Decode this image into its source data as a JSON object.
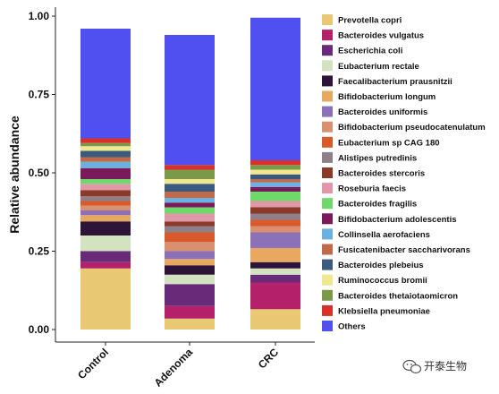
{
  "chart_data": {
    "type": "bar",
    "stacked": true,
    "ylabel": "Relative abundance",
    "ylim": [
      0,
      1
    ],
    "yticks": [
      "0.00",
      "0.25",
      "0.50",
      "0.75",
      "1.00"
    ],
    "categories": [
      "Control",
      "Adenoma",
      "CRC"
    ],
    "grid": false,
    "legend_position": "right",
    "series": [
      {
        "name": "Prevotella copri",
        "color": "#E8C872",
        "values": [
          0.195,
          0.035,
          0.065
        ]
      },
      {
        "name": "Bacteroides vulgatus",
        "color": "#B5206A",
        "values": [
          0.02,
          0.04,
          0.085
        ]
      },
      {
        "name": "Escherichia coli",
        "color": "#6A2A7A",
        "values": [
          0.035,
          0.07,
          0.025
        ]
      },
      {
        "name": "Eubacterium rectale",
        "color": "#D3E2C0",
        "values": [
          0.05,
          0.03,
          0.02
        ]
      },
      {
        "name": "Faecalibacterium prausnitzii",
        "color": "#2E1438",
        "values": [
          0.045,
          0.03,
          0.02
        ]
      },
      {
        "name": "Bifidobacterium longum",
        "color": "#E8A860",
        "values": [
          0.02,
          0.02,
          0.045
        ]
      },
      {
        "name": "Bacteroides uniformis",
        "color": "#8B72B8",
        "values": [
          0.015,
          0.025,
          0.05
        ]
      },
      {
        "name": "Bifidobacterium pseudocatenulatum",
        "color": "#D89070",
        "values": [
          0.015,
          0.03,
          0.02
        ]
      },
      {
        "name": "Eubacterium sp CAG 180",
        "color": "#D85A2A",
        "values": [
          0.015,
          0.03,
          0.02
        ]
      },
      {
        "name": "Alistipes putredinis",
        "color": "#8E8088",
        "values": [
          0.015,
          0.02,
          0.02
        ]
      },
      {
        "name": "Bacteroides stercoris",
        "color": "#8B3A2A",
        "values": [
          0.02,
          0.015,
          0.02
        ]
      },
      {
        "name": "Roseburia faecis",
        "color": "#E098A8",
        "values": [
          0.02,
          0.025,
          0.02
        ]
      },
      {
        "name": "Bacteroides fragilis",
        "color": "#6ED86A",
        "values": [
          0.015,
          0.02,
          0.03
        ]
      },
      {
        "name": "Bifidobacterium adolescentis",
        "color": "#7A1A5A",
        "values": [
          0.035,
          0.015,
          0.015
        ]
      },
      {
        "name": "Collinsella aerofaciens",
        "color": "#6AB0E0",
        "values": [
          0.02,
          0.015,
          0.015
        ]
      },
      {
        "name": "Fusicatenibacter saccharivorans",
        "color": "#C06A4A",
        "values": [
          0.015,
          0.02,
          0.01
        ]
      },
      {
        "name": "Bacteroides plebeius",
        "color": "#3A5A80",
        "values": [
          0.02,
          0.025,
          0.015
        ]
      },
      {
        "name": "Ruminococcus bromii",
        "color": "#F0E890",
        "values": [
          0.015,
          0.015,
          0.015
        ]
      },
      {
        "name": "Bacteroides thetaiotaomicron",
        "color": "#7A9A4A",
        "values": [
          0.01,
          0.03,
          0.015
        ]
      },
      {
        "name": "Klebsiella pneumoniae",
        "color": "#D8302A",
        "values": [
          0.015,
          0.015,
          0.015
        ]
      },
      {
        "name": "Others",
        "color": "#5050F0",
        "values": [
          0.35,
          0.415,
          0.455
        ]
      }
    ]
  },
  "watermark": {
    "text": "开泰生物"
  }
}
